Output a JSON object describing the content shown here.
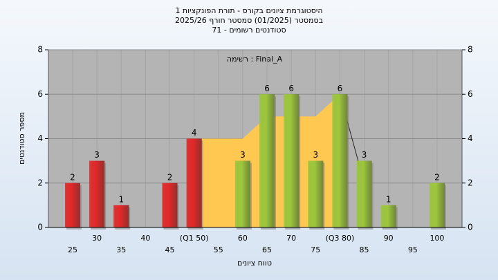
{
  "chart_data": {
    "type": "bar",
    "title_lines": [
      "היסטוגרמת ציונים בקורס - תורת הפונקציות 1",
      "בסמסטר  (01/2025)  סמסטר חורף 2025/26",
      "סטודנטים רשומים - 71"
    ],
    "annotation": "רשימה : Final_A",
    "x_label": "טווח ציונים",
    "y_label": "מספר סטודנטים",
    "categories": [
      "25",
      "30",
      "35",
      "40",
      "45",
      "(Q1 50)",
      "55",
      "60",
      "65",
      "70",
      "75",
      "(Q3 80)",
      "85",
      "90",
      "95",
      "100"
    ],
    "values": [
      2,
      3,
      1,
      0,
      2,
      4,
      0,
      3,
      6,
      6,
      3,
      6,
      3,
      1,
      0,
      2
    ],
    "colors": [
      "#e02828",
      "#e02828",
      "#e02828",
      "#e02828",
      "#e02828",
      "#e02828",
      "#9cc63c",
      "#9cc63c",
      "#9cc63c",
      "#9cc63c",
      "#9cc63c",
      "#9cc63c",
      "#9cc63c",
      "#9cc63c",
      "#9cc63c",
      "#9cc63c"
    ],
    "area": {
      "color": "#ffc850",
      "values": [
        null,
        null,
        null,
        null,
        null,
        4,
        4,
        4,
        5,
        5,
        5,
        6,
        2,
        null,
        null,
        null
      ]
    },
    "ylim": [
      0,
      8
    ],
    "yticks": [
      0,
      2,
      4,
      6,
      8
    ],
    "grid": true
  }
}
